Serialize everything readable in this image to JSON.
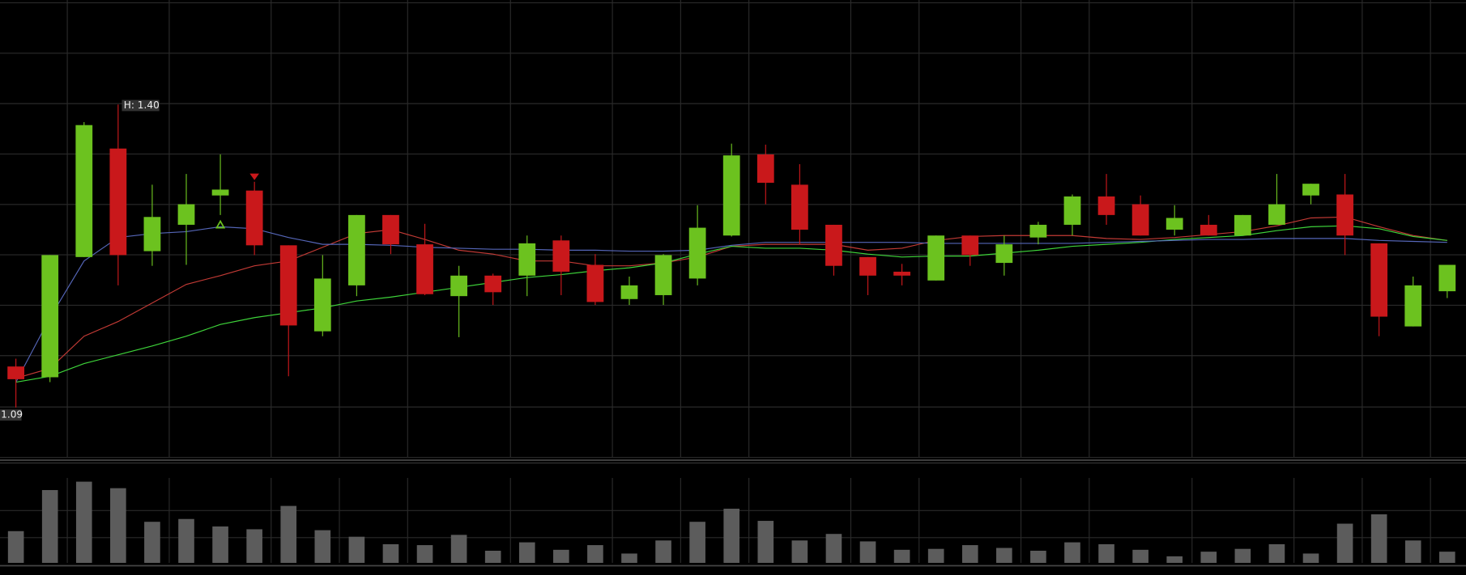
{
  "chart_data": {
    "type": "candlestick",
    "high_label": "H: 1.40",
    "low_label": "1.09",
    "ylim": [
      1.039,
      1.507
    ],
    "grid": true,
    "up_color": "#6cc21f",
    "down_color": "#c9181b",
    "candles": {
      "open": [
        1.132,
        1.121,
        1.244,
        1.355,
        1.25,
        1.277,
        1.307,
        1.312,
        1.256,
        1.168,
        1.215,
        1.287,
        1.257,
        1.204,
        1.225,
        1.225,
        1.261,
        1.236,
        1.201,
        1.205,
        1.222,
        1.266,
        1.349,
        1.318,
        1.277,
        1.244,
        1.229,
        1.22,
        1.266,
        1.238,
        1.264,
        1.277,
        1.306,
        1.298,
        1.272,
        1.277,
        1.266,
        1.277,
        1.307,
        1.308,
        1.258,
        1.173,
        1.209
      ],
      "high": [
        1.14,
        1.246,
        1.382,
        1.4,
        1.318,
        1.329,
        1.349,
        1.321,
        1.256,
        1.246,
        1.287,
        1.287,
        1.278,
        1.235,
        1.227,
        1.266,
        1.266,
        1.247,
        1.224,
        1.247,
        1.297,
        1.36,
        1.359,
        1.339,
        1.277,
        1.244,
        1.237,
        1.266,
        1.266,
        1.266,
        1.28,
        1.308,
        1.329,
        1.307,
        1.297,
        1.287,
        1.287,
        1.329,
        1.319,
        1.329,
        1.258,
        1.224,
        1.236
      ],
      "low": [
        1.09,
        1.116,
        1.244,
        1.215,
        1.235,
        1.236,
        1.287,
        1.246,
        1.122,
        1.163,
        1.204,
        1.247,
        1.205,
        1.162,
        1.195,
        1.204,
        1.205,
        1.195,
        1.195,
        1.195,
        1.215,
        1.265,
        1.298,
        1.257,
        1.225,
        1.205,
        1.215,
        1.22,
        1.235,
        1.225,
        1.257,
        1.266,
        1.277,
        1.266,
        1.266,
        1.266,
        1.266,
        1.277,
        1.298,
        1.246,
        1.163,
        1.173,
        1.202
      ],
      "close": [
        1.119,
        1.246,
        1.379,
        1.246,
        1.285,
        1.298,
        1.313,
        1.256,
        1.174,
        1.222,
        1.287,
        1.257,
        1.206,
        1.225,
        1.208,
        1.258,
        1.229,
        1.198,
        1.215,
        1.246,
        1.274,
        1.348,
        1.32,
        1.272,
        1.235,
        1.225,
        1.225,
        1.266,
        1.246,
        1.257,
        1.277,
        1.306,
        1.287,
        1.266,
        1.284,
        1.266,
        1.287,
        1.298,
        1.319,
        1.266,
        1.183,
        1.215,
        1.236
      ]
    },
    "moving_averages": [
      {
        "color": "#c23a35",
        "values": [
          1.12,
          1.13,
          1.163,
          1.178,
          1.197,
          1.216,
          1.225,
          1.235,
          1.24,
          1.254,
          1.268,
          1.272,
          1.262,
          1.251,
          1.247,
          1.24,
          1.24,
          1.235,
          1.235,
          1.238,
          1.244,
          1.255,
          1.257,
          1.257,
          1.257,
          1.251,
          1.253,
          1.261,
          1.265,
          1.266,
          1.266,
          1.266,
          1.263,
          1.262,
          1.264,
          1.267,
          1.27,
          1.276,
          1.284,
          1.285,
          1.275,
          1.266,
          1.261
        ]
      },
      {
        "color": "#3ed43a",
        "values": [
          1.116,
          1.122,
          1.135,
          1.144,
          1.153,
          1.163,
          1.175,
          1.182,
          1.187,
          1.192,
          1.199,
          1.203,
          1.208,
          1.213,
          1.218,
          1.223,
          1.226,
          1.23,
          1.233,
          1.238,
          1.247,
          1.255,
          1.253,
          1.253,
          1.251,
          1.247,
          1.244,
          1.245,
          1.245,
          1.248,
          1.251,
          1.255,
          1.257,
          1.259,
          1.262,
          1.264,
          1.266,
          1.271,
          1.275,
          1.276,
          1.273,
          1.265,
          1.261
        ]
      },
      {
        "color": "#5566b8",
        "values": [
          1.116,
          1.182,
          1.24,
          1.264,
          1.268,
          1.27,
          1.275,
          1.273,
          1.264,
          1.257,
          1.257,
          1.256,
          1.254,
          1.253,
          1.252,
          1.252,
          1.251,
          1.251,
          1.25,
          1.25,
          1.251,
          1.256,
          1.259,
          1.259,
          1.259,
          1.259,
          1.259,
          1.258,
          1.258,
          1.258,
          1.258,
          1.258,
          1.259,
          1.26,
          1.261,
          1.262,
          1.262,
          1.263,
          1.263,
          1.263,
          1.261,
          1.26,
          1.259
        ]
      }
    ],
    "volume": {
      "color": "#5c5c5c",
      "ylim": [
        0,
        93
      ],
      "values": [
        34,
        78,
        87,
        80,
        44,
        47,
        39,
        36,
        61,
        35,
        28,
        20,
        19,
        30,
        13,
        22,
        14,
        19,
        10,
        24,
        44,
        58,
        45,
        24,
        31,
        23,
        14,
        15,
        19,
        16,
        13,
        22,
        20,
        14,
        7,
        12,
        15,
        20,
        10,
        42,
        52,
        24,
        12
      ]
    }
  }
}
